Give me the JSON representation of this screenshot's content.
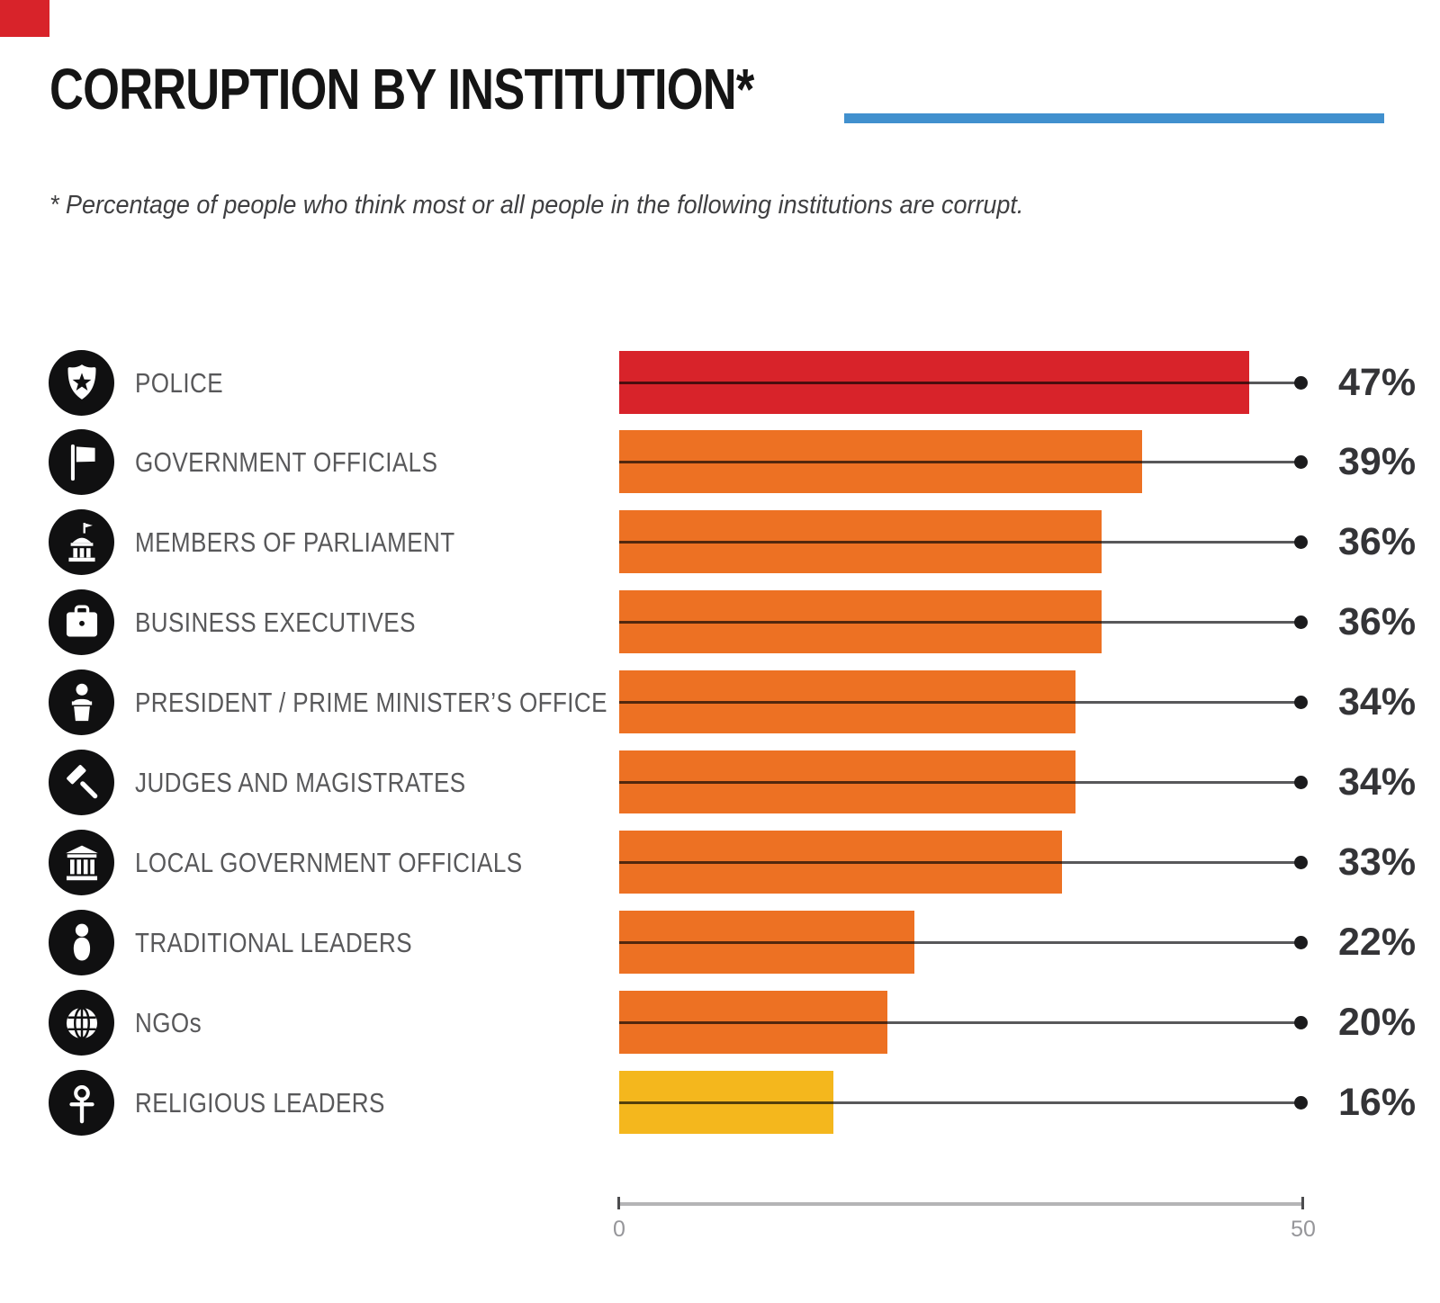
{
  "page": {
    "background_color": "#ffffff",
    "corner_mark_color": "#d8232a"
  },
  "header": {
    "title": "CORRUPTION BY INSTITUTION*",
    "subtitle": "* Percentage of people who think most or all people in the following institutions are corrupt.",
    "accent_line_color": "#4190ce"
  },
  "chart_data": {
    "type": "bar",
    "orientation": "horizontal",
    "title": "CORRUPTION BY INSTITUTION*",
    "note": "* Percentage of people who think most or all people in the following institutions are corrupt.",
    "unit": "percent",
    "xlim": [
      0,
      50
    ],
    "x_ticks": [
      0,
      50
    ],
    "grid": false,
    "legend": false,
    "categories": [
      "POLICE",
      "GOVERNMENT OFFICIALS",
      "MEMBERS OF PARLIAMENT",
      "BUSINESS EXECUTIVES",
      "PRESIDENT / PRIME MINISTER’S OFFICE",
      "JUDGES AND MAGISTRATES",
      "LOCAL GOVERNMENT OFFICIALS",
      "TRADITIONAL LEADERS",
      "NGOs",
      "RELIGIOUS LEADERS"
    ],
    "values": [
      47,
      39,
      36,
      36,
      34,
      34,
      33,
      22,
      20,
      16
    ],
    "value_labels": [
      "47%",
      "39%",
      "36%",
      "36%",
      "34%",
      "34%",
      "33%",
      "22%",
      "20%",
      "16%"
    ],
    "bar_colors": [
      "#d8232a",
      "#ed7123",
      "#ed7123",
      "#ed7123",
      "#ed7123",
      "#ed7123",
      "#ed7123",
      "#ed7123",
      "#ed7123",
      "#f4b71d"
    ],
    "icons": [
      "police-badge-icon",
      "flag-icon",
      "parliament-building-icon",
      "briefcase-icon",
      "podium-speaker-icon",
      "gavel-icon",
      "government-building-icon",
      "person-icon",
      "globe-icon",
      "ankh-icon"
    ],
    "icon_background_color": "#101011",
    "leader_line_color": "#58585a",
    "dot_color": "#1b1b1d"
  },
  "axis": {
    "min_label": "0",
    "max_label": "50"
  }
}
